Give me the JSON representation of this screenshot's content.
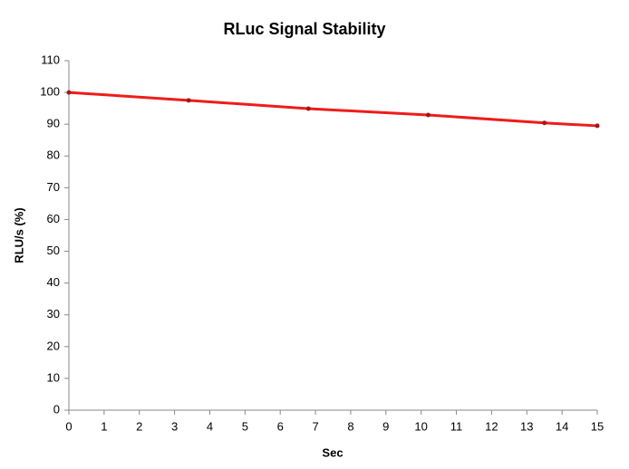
{
  "chart_data": {
    "type": "line",
    "title": "RLuc Signal Stability",
    "x_label": "Sec",
    "y_label": "RLU/s (%)",
    "x": [
      0,
      3.4,
      6.8,
      10.2,
      13.5,
      15
    ],
    "series": [
      {
        "name": "RLuc",
        "color": "#ee1c1c",
        "values": [
          100,
          97.5,
          94.9,
          92.9,
          90.4,
          89.5
        ]
      }
    ],
    "xlim": [
      0,
      15
    ],
    "xticks": [
      0,
      1,
      2,
      3,
      4,
      5,
      6,
      7,
      8,
      9,
      10,
      11,
      12,
      13,
      14,
      15
    ],
    "ylim": [
      0,
      110
    ],
    "yticks": [
      0,
      10,
      20,
      30,
      40,
      50,
      60,
      70,
      80,
      90,
      100,
      110
    ],
    "grid": false
  }
}
